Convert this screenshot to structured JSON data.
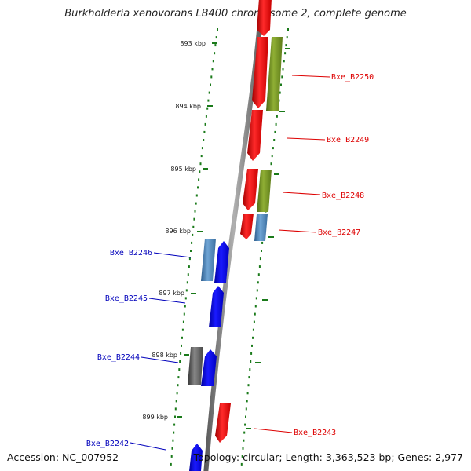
{
  "title": "Burkholderia xenovorans LB400 chromosome 2, complete genome",
  "footer": {
    "accession": "Accession: NC_007952",
    "topology": "Topology: circular; Length: 3,363,523 bp; Genes: 2,977"
  },
  "kbp_labels": [
    "893 kbp",
    "894 kbp",
    "895 kbp",
    "896 kbp",
    "897 kbp",
    "898 kbp",
    "899 kbp"
  ],
  "genes_forward": [
    "Bxe_B2250",
    "Bxe_B2249",
    "Bxe_B2248",
    "Bxe_B2247",
    "Bxe_B2243"
  ],
  "genes_reverse": [
    "Bxe_B2246",
    "Bxe_B2245",
    "Bxe_B2244",
    "Bxe_B2242"
  ],
  "colors": {
    "forward_label": "#dd0000",
    "reverse_label": "#0000bb",
    "cds_red": "#ff0000",
    "cds_blue": "#0000ff",
    "feature_green": "#6f8f1f",
    "feature_steelblue": "#4f86b8",
    "feature_gray": "#555555",
    "tick_green": "#1a7a1a",
    "backbone": "#8a8a8a"
  }
}
